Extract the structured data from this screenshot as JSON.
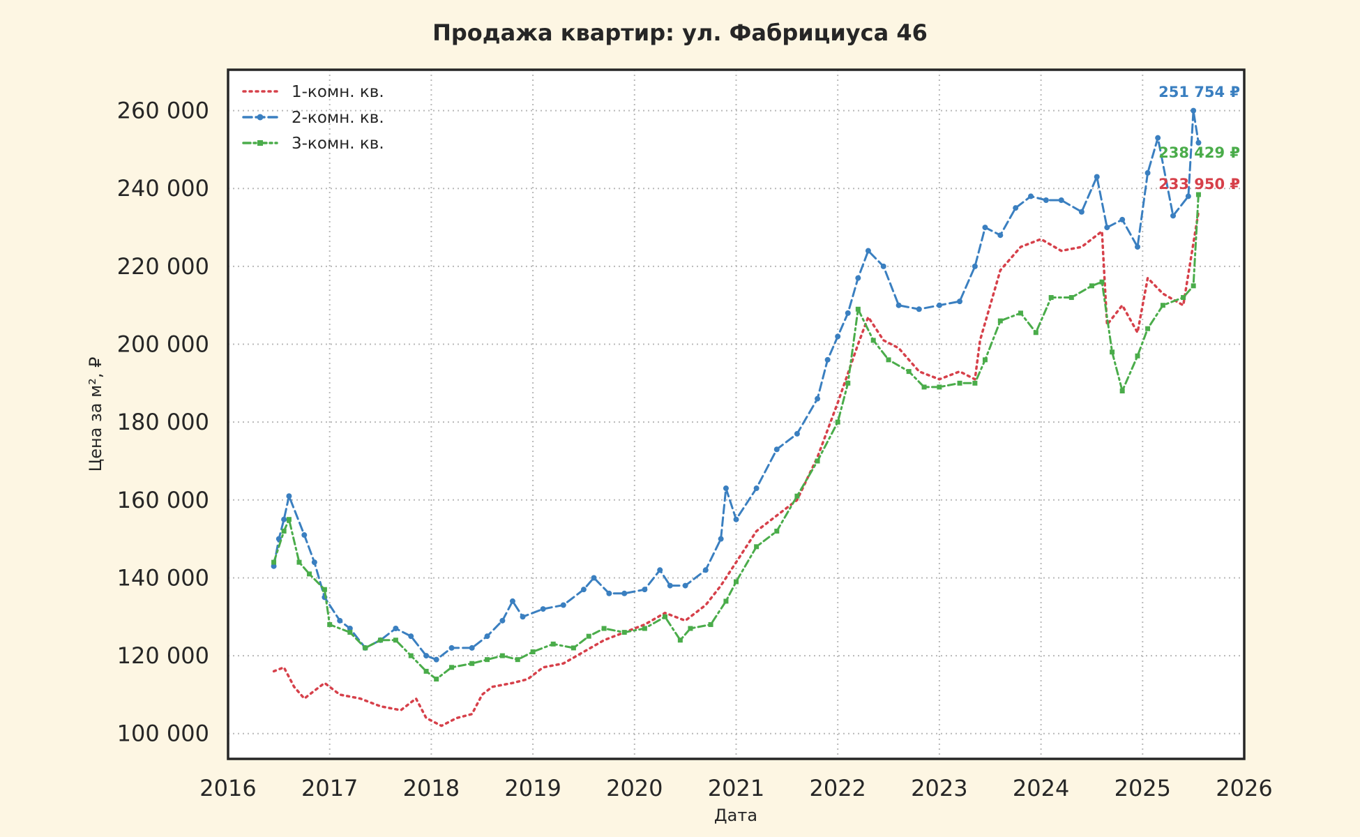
{
  "chart_data": {
    "type": "line",
    "title": "Продажа квартир: ул. Фабрициуса 46",
    "xlabel": "Дата",
    "ylabel": "Цена за м², ₽",
    "xlim": [
      2016,
      2026
    ],
    "ylim": [
      93500,
      270500
    ],
    "x_ticks": [
      2016,
      2017,
      2018,
      2019,
      2020,
      2021,
      2022,
      2023,
      2024,
      2025,
      2026
    ],
    "x_tick_labels": [
      "2016",
      "2017",
      "2018",
      "2019",
      "2020",
      "2021",
      "2022",
      "2023",
      "2024",
      "2025",
      "2026"
    ],
    "y_ticks": [
      100000,
      120000,
      140000,
      160000,
      180000,
      200000,
      220000,
      240000,
      260000
    ],
    "y_tick_labels": [
      "100 000",
      "120 000",
      "140 000",
      "160 000",
      "180 000",
      "200 000",
      "220 000",
      "240 000",
      "260 000"
    ],
    "grid": true,
    "legend_position": "top-left",
    "series": [
      {
        "name": "1-комн. кв.",
        "color": "#d6404a",
        "line_style": "dotted",
        "marker": "none",
        "end_label": "233 950 ₽",
        "x": [
          2016.45,
          2016.55,
          2016.65,
          2016.75,
          2016.85,
          2016.95,
          2017.1,
          2017.3,
          2017.5,
          2017.7,
          2017.85,
          2017.95,
          2018.1,
          2018.25,
          2018.4,
          2018.5,
          2018.6,
          2018.8,
          2018.95,
          2019.1,
          2019.3,
          2019.5,
          2019.7,
          2019.9,
          2020.1,
          2020.3,
          2020.5,
          2020.7,
          2020.85,
          2021.0,
          2021.2,
          2021.4,
          2021.6,
          2021.8,
          2022.0,
          2022.2,
          2022.3,
          2022.45,
          2022.6,
          2022.8,
          2023.0,
          2023.2,
          2023.35,
          2023.4,
          2023.6,
          2023.8,
          2024.0,
          2024.2,
          2024.4,
          2024.6,
          2024.65,
          2024.8,
          2024.95,
          2025.05,
          2025.2,
          2025.4,
          2025.55
        ],
        "y": [
          116000,
          117000,
          112000,
          109000,
          111000,
          113000,
          110000,
          109000,
          107000,
          106000,
          109000,
          104000,
          102000,
          104000,
          105000,
          110000,
          112000,
          113000,
          114000,
          117000,
          118000,
          121000,
          124000,
          126000,
          128000,
          131000,
          129000,
          133000,
          138000,
          144000,
          152000,
          156000,
          160000,
          171000,
          185000,
          200000,
          207000,
          201000,
          199000,
          193000,
          191000,
          193000,
          191000,
          201000,
          219000,
          225000,
          227000,
          224000,
          225000,
          229000,
          205000,
          210000,
          203000,
          217000,
          213000,
          210000,
          233950
        ]
      },
      {
        "name": "2-комн. кв.",
        "color": "#3a7fc0",
        "line_style": "dashed",
        "marker": "circle",
        "end_label": "251 754 ₽",
        "x": [
          2016.45,
          2016.5,
          2016.55,
          2016.6,
          2016.75,
          2016.85,
          2016.95,
          2017.1,
          2017.2,
          2017.35,
          2017.5,
          2017.65,
          2017.8,
          2017.95,
          2018.05,
          2018.2,
          2018.4,
          2018.55,
          2018.7,
          2018.8,
          2018.9,
          2019.1,
          2019.3,
          2019.5,
          2019.6,
          2019.75,
          2019.9,
          2020.1,
          2020.25,
          2020.35,
          2020.5,
          2020.7,
          2020.85,
          2020.9,
          2021.0,
          2021.2,
          2021.4,
          2021.6,
          2021.8,
          2021.9,
          2022.0,
          2022.1,
          2022.2,
          2022.3,
          2022.45,
          2022.6,
          2022.8,
          2023.0,
          2023.2,
          2023.35,
          2023.45,
          2023.6,
          2023.75,
          2023.9,
          2024.05,
          2024.2,
          2024.4,
          2024.55,
          2024.65,
          2024.8,
          2024.95,
          2025.05,
          2025.15,
          2025.3,
          2025.45,
          2025.5,
          2025.55
        ],
        "y": [
          143000,
          150000,
          155000,
          161000,
          151000,
          144000,
          135000,
          129000,
          127000,
          122000,
          124000,
          127000,
          125000,
          120000,
          119000,
          122000,
          122000,
          125000,
          129000,
          134000,
          130000,
          132000,
          133000,
          137000,
          140000,
          136000,
          136000,
          137000,
          142000,
          138000,
          138000,
          142000,
          150000,
          163000,
          155000,
          163000,
          173000,
          177000,
          186000,
          196000,
          202000,
          208000,
          217000,
          224000,
          220000,
          210000,
          209000,
          210000,
          211000,
          220000,
          230000,
          228000,
          235000,
          238000,
          237000,
          237000,
          234000,
          243000,
          230000,
          232000,
          225000,
          244000,
          253000,
          233000,
          238000,
          260000,
          251754
        ]
      },
      {
        "name": "3-комн. кв.",
        "color": "#4aac4a",
        "line_style": "dashdot",
        "marker": "square",
        "end_label": "238 429 ₽",
        "x": [
          2016.45,
          2016.55,
          2016.6,
          2016.7,
          2016.8,
          2016.95,
          2017.0,
          2017.2,
          2017.35,
          2017.5,
          2017.65,
          2017.8,
          2017.95,
          2018.05,
          2018.2,
          2018.4,
          2018.55,
          2018.7,
          2018.85,
          2019.0,
          2019.2,
          2019.4,
          2019.55,
          2019.7,
          2019.9,
          2020.1,
          2020.3,
          2020.45,
          2020.55,
          2020.75,
          2020.9,
          2021.0,
          2021.2,
          2021.4,
          2021.6,
          2021.8,
          2022.0,
          2022.1,
          2022.2,
          2022.35,
          2022.5,
          2022.7,
          2022.85,
          2023.0,
          2023.2,
          2023.35,
          2023.45,
          2023.6,
          2023.8,
          2023.95,
          2024.1,
          2024.3,
          2024.5,
          2024.6,
          2024.7,
          2024.8,
          2024.95,
          2025.05,
          2025.2,
          2025.4,
          2025.5,
          2025.55
        ],
        "y": [
          144000,
          152000,
          155000,
          144000,
          141000,
          137000,
          128000,
          126000,
          122000,
          124000,
          124000,
          120000,
          116000,
          114000,
          117000,
          118000,
          119000,
          120000,
          119000,
          121000,
          123000,
          122000,
          125000,
          127000,
          126000,
          127000,
          130000,
          124000,
          127000,
          128000,
          134000,
          139000,
          148000,
          152000,
          161000,
          170000,
          180000,
          190000,
          209000,
          201000,
          196000,
          193000,
          189000,
          189000,
          190000,
          190000,
          196000,
          206000,
          208000,
          203000,
          212000,
          212000,
          215000,
          216000,
          198000,
          188000,
          197000,
          204000,
          210000,
          212000,
          215000,
          238429
        ]
      }
    ]
  }
}
